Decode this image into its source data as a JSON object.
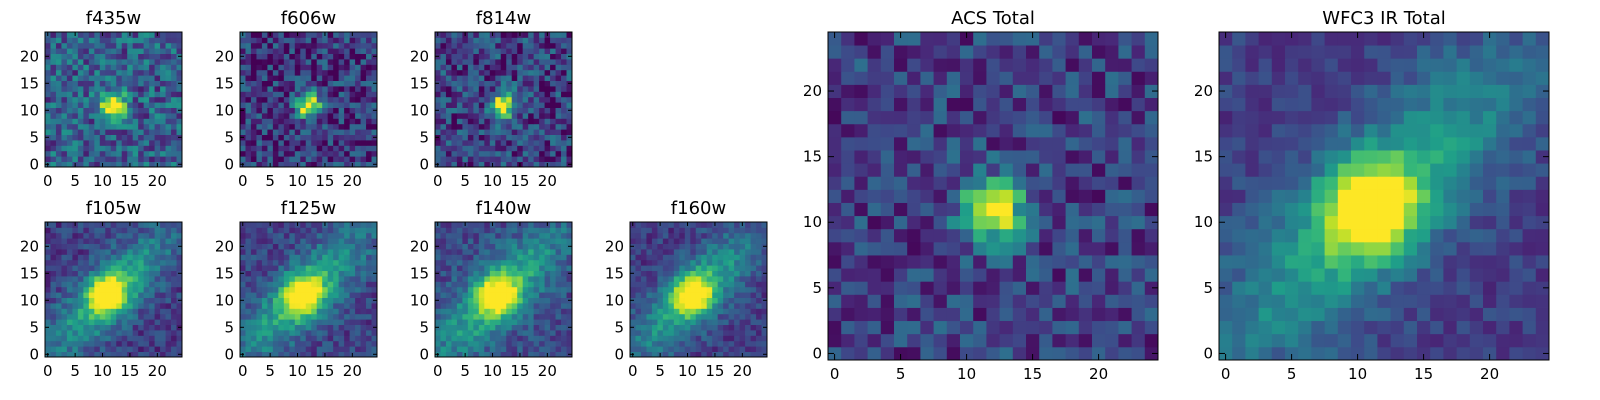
{
  "chart_data": [
    {
      "type": "heatmap",
      "title": "f435w",
      "pattern": "blob",
      "noise": 0.45,
      "base": 0.55,
      "peak": 1.0,
      "x_ticks": [
        "0",
        "5",
        "10",
        "15",
        "20"
      ],
      "y_ticks": [
        "0",
        "5",
        "10",
        "15",
        "20"
      ],
      "xlim": [
        0,
        25
      ],
      "ylim": [
        0,
        25
      ],
      "blob_center": [
        12,
        11
      ],
      "colormap": "viridis"
    },
    {
      "type": "heatmap",
      "title": "f606w",
      "pattern": "blob",
      "noise": 0.45,
      "base": 0.3,
      "peak": 1.0,
      "x_ticks": [
        "0",
        "5",
        "10",
        "15",
        "20"
      ],
      "y_ticks": [
        "0",
        "5",
        "10",
        "15",
        "20"
      ],
      "xlim": [
        0,
        25
      ],
      "ylim": [
        0,
        25
      ],
      "blob_center": [
        12,
        11
      ],
      "colormap": "viridis"
    },
    {
      "type": "heatmap",
      "title": "f814w",
      "pattern": "blob",
      "noise": 0.45,
      "base": 0.35,
      "peak": 1.0,
      "x_ticks": [
        "0",
        "5",
        "10",
        "15",
        "20"
      ],
      "y_ticks": [
        "0",
        "5",
        "10",
        "15",
        "20"
      ],
      "xlim": [
        0,
        25
      ],
      "ylim": [
        0,
        25
      ],
      "blob_center": [
        12,
        11
      ],
      "colormap": "viridis"
    },
    {
      "type": "heatmap",
      "title": "f105w",
      "pattern": "diffuse",
      "noise": 0.25,
      "base": 0.4,
      "peak": 1.0,
      "x_ticks": [
        "0",
        "5",
        "10",
        "15",
        "20"
      ],
      "y_ticks": [
        "0",
        "5",
        "10",
        "15",
        "20"
      ],
      "xlim": [
        0,
        25
      ],
      "ylim": [
        0,
        25
      ],
      "blob_center": [
        11,
        11
      ],
      "colormap": "viridis"
    },
    {
      "type": "heatmap",
      "title": "f125w",
      "pattern": "diffuse",
      "noise": 0.25,
      "base": 0.45,
      "peak": 1.0,
      "x_ticks": [
        "0",
        "5",
        "10",
        "15",
        "20"
      ],
      "y_ticks": [
        "0",
        "5",
        "10",
        "15",
        "20"
      ],
      "xlim": [
        0,
        25
      ],
      "ylim": [
        0,
        25
      ],
      "blob_center": [
        11,
        11
      ],
      "colormap": "viridis"
    },
    {
      "type": "heatmap",
      "title": "f140w",
      "pattern": "diffuse",
      "noise": 0.25,
      "base": 0.5,
      "peak": 1.0,
      "x_ticks": [
        "0",
        "5",
        "10",
        "15",
        "20"
      ],
      "y_ticks": [
        "0",
        "5",
        "10",
        "15",
        "20"
      ],
      "xlim": [
        0,
        25
      ],
      "ylim": [
        0,
        25
      ],
      "blob_center": [
        11,
        11
      ],
      "colormap": "viridis"
    },
    {
      "type": "heatmap",
      "title": "f160w",
      "pattern": "diffuse",
      "noise": 0.22,
      "base": 0.4,
      "peak": 1.0,
      "x_ticks": [
        "0",
        "5",
        "10",
        "15",
        "20"
      ],
      "y_ticks": [
        "0",
        "5",
        "10",
        "15",
        "20"
      ],
      "xlim": [
        0,
        25
      ],
      "ylim": [
        0,
        25
      ],
      "blob_center": [
        11,
        11
      ],
      "colormap": "viridis"
    },
    {
      "type": "heatmap",
      "title": "ACS Total",
      "pattern": "blob",
      "noise": 0.35,
      "base": 0.35,
      "peak": 1.0,
      "x_ticks": [
        "0",
        "5",
        "10",
        "15",
        "20"
      ],
      "y_ticks": [
        "0",
        "5",
        "10",
        "15",
        "20"
      ],
      "xlim": [
        0,
        25
      ],
      "ylim": [
        0,
        25
      ],
      "blob_center": [
        12,
        11
      ],
      "colormap": "viridis"
    },
    {
      "type": "heatmap",
      "title": "WFC3 IR Total",
      "pattern": "diffuse",
      "noise": 0.18,
      "base": 0.4,
      "peak": 1.0,
      "x_ticks": [
        "0",
        "5",
        "10",
        "15",
        "20"
      ],
      "y_ticks": [
        "0",
        "5",
        "10",
        "15",
        "20"
      ],
      "xlim": [
        0,
        25
      ],
      "ylim": [
        0,
        25
      ],
      "blob_center": [
        11,
        11
      ],
      "colormap": "viridis"
    }
  ]
}
